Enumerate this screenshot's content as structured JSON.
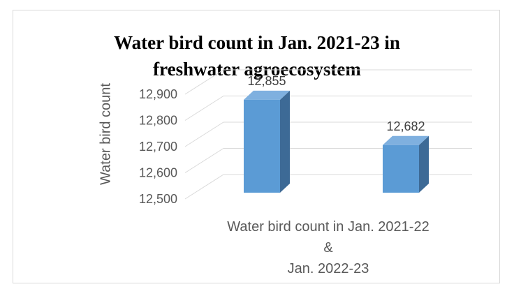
{
  "chart_data": {
    "type": "bar",
    "title_lines": [
      "Water bird count in Jan. 2021-23 in",
      "freshwater agroecosystem"
    ],
    "ylabel": "Water bird count",
    "xlabel": "",
    "category_label": [
      "Water bird count in Jan. 2021-22 &",
      "Jan. 2022-23"
    ],
    "ylim": [
      12500,
      12900
    ],
    "yticks": [
      12500,
      12600,
      12700,
      12800,
      12900
    ],
    "ytick_labels": [
      "12,500",
      "12,600",
      "12,700",
      "12,800",
      "12,900"
    ],
    "series": [
      {
        "value": 12855,
        "label": "12,855"
      },
      {
        "value": 12682,
        "label": "12,682"
      }
    ],
    "legend": "none",
    "grid": true,
    "style": "3d-column",
    "colors": {
      "bar_front": "#5b9bd5",
      "bar_side": "#3d6a96",
      "bar_top": "#7fb0df",
      "grid": "#d9d9d9"
    }
  }
}
